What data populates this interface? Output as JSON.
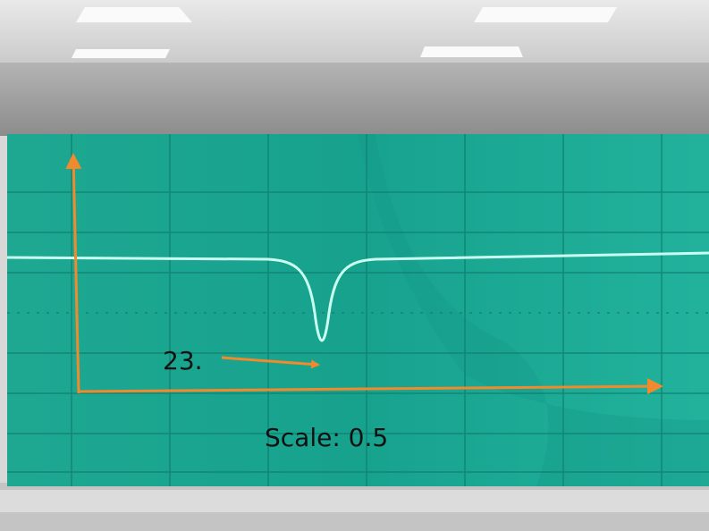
{
  "annotations": {
    "value_label": "23.",
    "scale": "Scale: 0.5"
  }
}
